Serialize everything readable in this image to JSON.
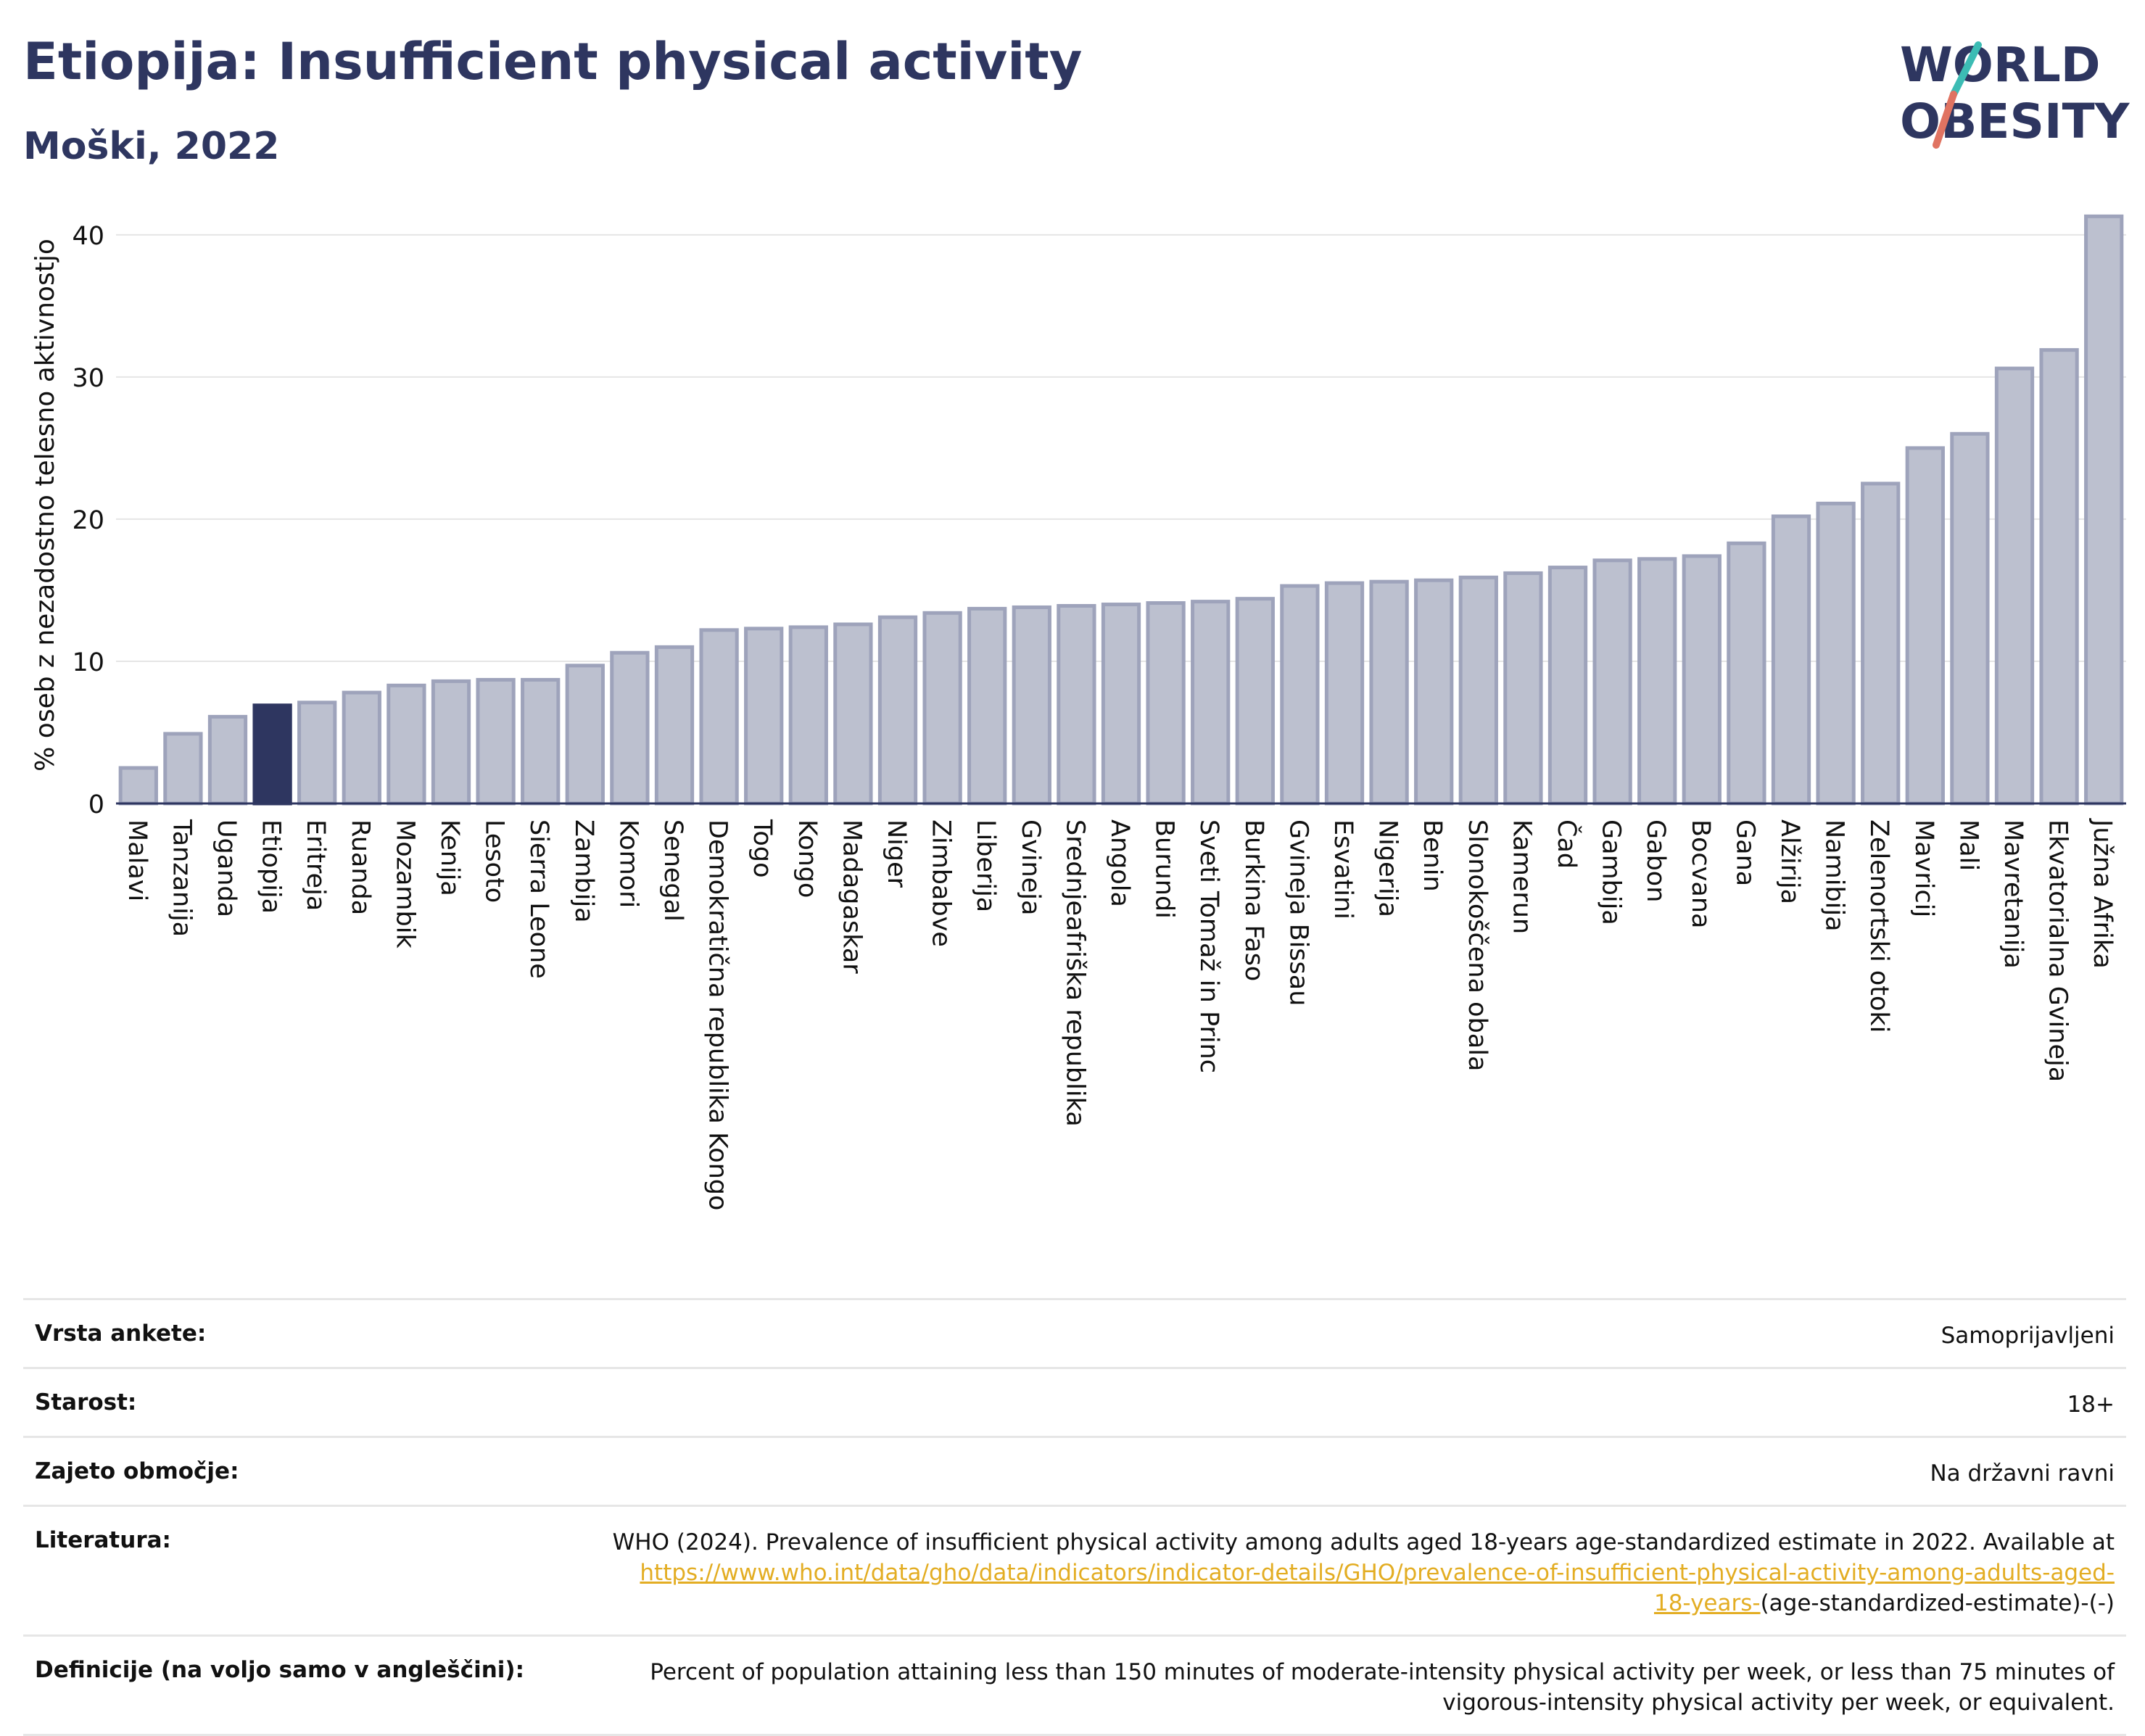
{
  "title": "Etiopija: Insufficient physical activity",
  "subtitle": "Moški, 2022",
  "logo": {
    "line1": "WORLD",
    "line2": "OBESITY"
  },
  "colors": {
    "bar": "#bcc0cf",
    "bar_stroke": "#9ea3bb",
    "highlight": "#2e3660",
    "text": "#2e3660",
    "link": "#e3ad23"
  },
  "chart_data": {
    "type": "bar",
    "ylabel": "% oseb z nezadostno telesno aktivnostjo",
    "ylim": [
      0,
      43
    ],
    "yticks": [
      0,
      10,
      20,
      30,
      40
    ],
    "grid": true,
    "highlight": "Etiopija",
    "categories": [
      "Malavi",
      "Tanzanija",
      "Uganda",
      "Etiopija",
      "Eritreja",
      "Ruanda",
      "Mozambik",
      "Kenija",
      "Lesoto",
      "Sierra Leone",
      "Zambija",
      "Komori",
      "Senegal",
      "Demokratična republika Kongo",
      "Togo",
      "Kongo",
      "Madagaskar",
      "Niger",
      "Zimbabve",
      "Liberija",
      "Gvineja",
      "Srednjeafriška republika",
      "Angola",
      "Burundi",
      "Sveti Tomaž in Princ",
      "Burkina Faso",
      "Gvineja Bissau",
      "Esvatini",
      "Nigerija",
      "Benin",
      "Slonokoščena obala",
      "Kamerun",
      "Čad",
      "Gambija",
      "Gabon",
      "Bocvana",
      "Gana",
      "Alžirija",
      "Namibija",
      "Zelenortski otoki",
      "Mavricij",
      "Mali",
      "Mavretanija",
      "Ekvatorialna Gvineja",
      "Južna Afrika"
    ],
    "values": [
      2.5,
      4.9,
      6.1,
      6.9,
      7.1,
      7.8,
      8.3,
      8.6,
      8.7,
      8.7,
      9.7,
      10.6,
      11.0,
      12.2,
      12.3,
      12.4,
      12.6,
      13.1,
      13.4,
      13.7,
      13.8,
      13.9,
      14.0,
      14.1,
      14.2,
      14.4,
      15.3,
      15.5,
      15.6,
      15.7,
      15.9,
      16.2,
      16.6,
      17.1,
      17.2,
      17.4,
      18.3,
      20.2,
      21.1,
      22.5,
      25.0,
      26.0,
      30.6,
      31.9,
      41.3
    ]
  },
  "info": {
    "rows": [
      {
        "label": "Vrsta ankete:",
        "value": "Samoprijavljeni"
      },
      {
        "label": "Starost:",
        "value": "18+"
      },
      {
        "label": "Zajeto območje:",
        "value": "Na državni ravni"
      }
    ],
    "literature": {
      "label": "Literatura:",
      "text": "WHO (2024). Prevalence of insufficient physical activity among adults aged 18-years age-standardized estimate in 2022. Available at",
      "link_line1": "https://www.who.int/data/gho/data/indicators/indicator-details/GHO/prevalence-of-insufficient-physical-activity-among-adults-aged-",
      "link_line2": "18-years-",
      "suffix": "(age-standardized-estimate)-(-)"
    },
    "definition": {
      "label": "Definicije (na voljo samo v angleščini):",
      "line1": "Percent of population attaining less than 150 minutes of moderate-intensity physical activity per week, or less than 75 minutes of",
      "line2": "vigorous-intensity physical activity per week, or equivalent."
    }
  }
}
